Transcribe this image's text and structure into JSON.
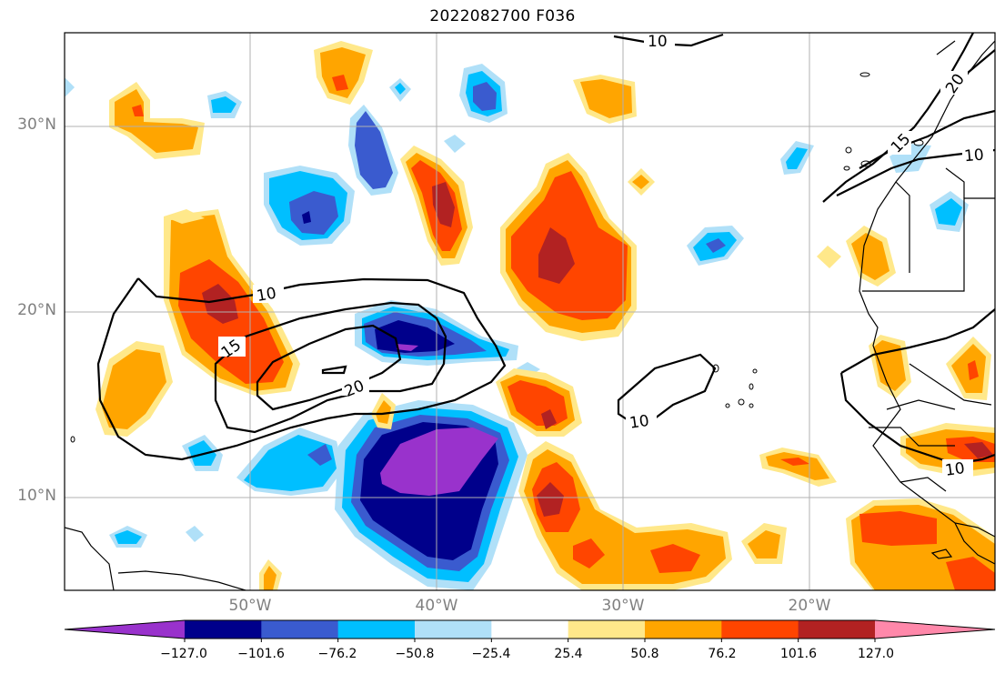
{
  "title": "2022082700 F036",
  "map": {
    "lat_labels": [
      "30°N",
      "20°N",
      "10°N"
    ],
    "lon_labels": [
      "50°W",
      "40°W",
      "30°W",
      "20°W"
    ],
    "contour_labels": [
      "10",
      "10",
      "10",
      "10",
      "10",
      "15",
      "15",
      "20",
      "20"
    ]
  },
  "colorbar": {
    "ticks": [
      "−127.0",
      "−101.6",
      "−76.2",
      "−50.8",
      "−25.4",
      "25.4",
      "50.8",
      "76.2",
      "101.6",
      "127.0"
    ],
    "colors": [
      "#9932cc",
      "#00008b",
      "#3a5bcf",
      "#00bfff",
      "#b0e0f8",
      "#ffffff",
      "#ffe88a",
      "#ffa500",
      "#ff4500",
      "#b22222",
      "#ff88aa"
    ],
    "extend": "both"
  }
}
